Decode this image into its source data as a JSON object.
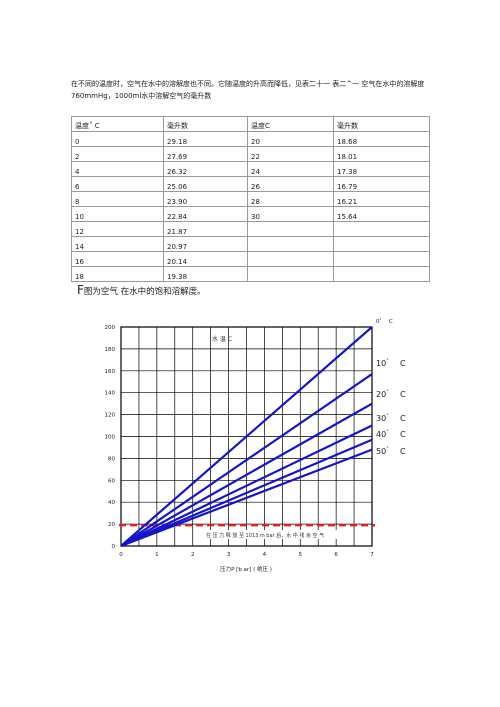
{
  "intro": {
    "line1": "在不同的温度时，空气在水中的溶解度也不同。它随温度的升高而降低，见表二十一 表二^一 空气在水中的溶解度",
    "line2": "760mmHg，1000ml水中溶解空气的毫升数"
  },
  "table": {
    "headers": [
      "温度˚ C",
      "毫升数",
      "温度C",
      "毫升数"
    ],
    "rows": [
      [
        "0",
        "29.18",
        "20",
        "18.68"
      ],
      [
        "2",
        "27.69",
        "22",
        "18.01"
      ],
      [
        "4",
        "26.32",
        "24",
        "17.38"
      ],
      [
        "6",
        "25.06",
        "26",
        "16.79"
      ],
      [
        "8",
        "23.90",
        "28",
        "16.21"
      ],
      [
        "10",
        "22.84",
        "30",
        "15.64"
      ],
      [
        "12",
        "21.87",
        "",
        ""
      ],
      [
        "14",
        "20.97",
        "",
        ""
      ],
      [
        "16",
        "20.14",
        "",
        ""
      ],
      [
        "18",
        "19.38",
        "",
        ""
      ]
    ]
  },
  "figure": {
    "caption_prefix": "F",
    "caption_text": "图为空气 在水中的饱和溶解度。"
  },
  "chart_data": {
    "type": "line",
    "xlabel": "压力P [b ar] ( 绝压 )",
    "ylabel": "",
    "xlim": [
      0,
      7
    ],
    "ylim": [
      0,
      200
    ],
    "x_ticks": [
      "0",
      "1",
      "2",
      "3",
      "4",
      "5",
      "6",
      "7"
    ],
    "y_ticks": [
      "0",
      "20",
      "40",
      "60",
      "80",
      "100",
      "120",
      "140",
      "160",
      "180",
      "200"
    ],
    "inner_label": "水 温   C",
    "grid": true,
    "series": [
      {
        "name": "0˚ C",
        "label_prefix": "0",
        "label_unit": "C",
        "color": "#1515c8",
        "x": [
          0,
          7
        ],
        "y": [
          0,
          200
        ]
      },
      {
        "name": "10˚ C",
        "label_prefix": "10",
        "label_unit": "C",
        "color": "#1515c8",
        "x": [
          0,
          7
        ],
        "y": [
          0,
          157
        ]
      },
      {
        "name": "20˚ C",
        "label_prefix": "20",
        "label_unit": "C",
        "color": "#1515c8",
        "x": [
          0,
          7
        ],
        "y": [
          0,
          130
        ]
      },
      {
        "name": "30˚ C",
        "label_prefix": "30",
        "label_unit": "C",
        "color": "#1515c8",
        "x": [
          0,
          7
        ],
        "y": [
          0,
          110
        ]
      },
      {
        "name": "40˚ C",
        "label_prefix": "40",
        "label_unit": "C",
        "color": "#1515c8",
        "x": [
          0,
          7
        ],
        "y": [
          0,
          97
        ]
      },
      {
        "name": "50˚ C",
        "label_prefix": "50",
        "label_unit": "C",
        "color": "#1515c8",
        "x": [
          0,
          7
        ],
        "y": [
          0,
          88
        ]
      }
    ],
    "reference_line": {
      "y": 19,
      "color": "#e02020",
      "style": "dashed"
    },
    "annotation": "在 压 力 释 放 至 1013 m  bar 后，水 中 残 余 空 气"
  }
}
